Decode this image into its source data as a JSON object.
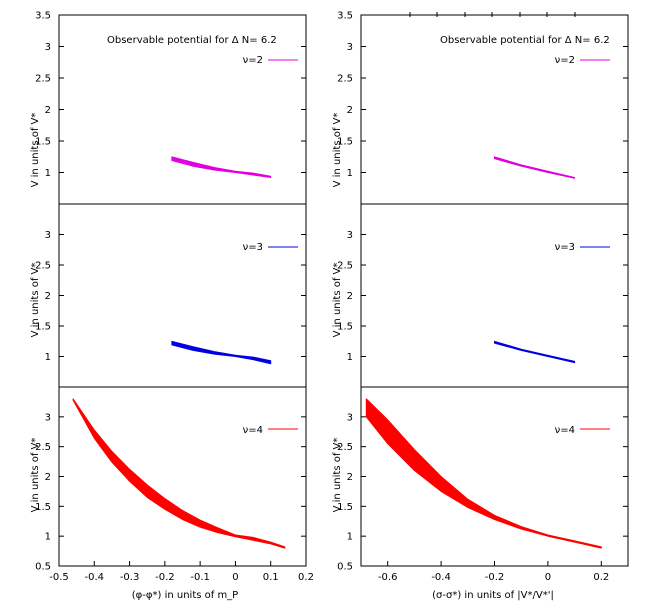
{
  "chart_data": [
    {
      "type": "scatter",
      "panel": "top-left",
      "title": "Observable potential for Δ N= 6.2",
      "legend": "ν=2",
      "legend_color": "#e000e0",
      "xlabel": "(φ-φ*) in units of m_P",
      "ylabel": "V in units of V*",
      "xlim": [
        -0.5,
        0.2
      ],
      "ylim": [
        0.5,
        3.5
      ],
      "yticks": [
        "1",
        "1.5",
        "2",
        "2.5",
        "3",
        "3.5"
      ],
      "band": {
        "x": [
          -0.18,
          -0.12,
          -0.06,
          0.0,
          0.05,
          0.1
        ],
        "lower": [
          1.19,
          1.1,
          1.04,
          1.0,
          0.96,
          0.92
        ],
        "upper": [
          1.25,
          1.16,
          1.08,
          1.02,
          0.99,
          0.94
        ]
      }
    },
    {
      "type": "scatter",
      "panel": "top-right",
      "title": "Observable potential for Δ N= 6.2",
      "legend": "ν=2",
      "legend_color": "#e000e0",
      "xlabel": "(σ-σ*) in units of |V*/V*'|",
      "ylabel": "V in units of V*",
      "xlim": [
        -0.7,
        0.3
      ],
      "ylim": [
        0.5,
        3.5
      ],
      "yticks": [
        "1",
        "1.5",
        "2",
        "2.5",
        "3",
        "3.5"
      ],
      "band": {
        "x": [
          -0.2,
          -0.1,
          0.0,
          0.1
        ],
        "lower": [
          1.22,
          1.1,
          1.0,
          0.91
        ],
        "upper": [
          1.25,
          1.12,
          1.02,
          0.92
        ]
      }
    },
    {
      "type": "scatter",
      "panel": "middle-left",
      "legend": "ν=3",
      "legend_color": "#0000e0",
      "xlabel": "(φ-φ*) in units of m_P",
      "ylabel": "V in units of V*",
      "xlim": [
        -0.5,
        0.2
      ],
      "ylim": [
        0.5,
        3.5
      ],
      "yticks": [
        "1",
        "1.5",
        "2",
        "2.5",
        "3"
      ],
      "band": {
        "x": [
          -0.18,
          -0.12,
          -0.06,
          0.0,
          0.05,
          0.1
        ],
        "lower": [
          1.19,
          1.1,
          1.04,
          1.0,
          0.95,
          0.88
        ],
        "upper": [
          1.25,
          1.16,
          1.08,
          1.02,
          0.99,
          0.93
        ]
      }
    },
    {
      "type": "scatter",
      "panel": "middle-right",
      "legend": "ν=3",
      "legend_color": "#0000e0",
      "xlabel": "(σ-σ*) in units of |V*/V*'|",
      "ylabel": "V in units of V*",
      "xlim": [
        -0.7,
        0.3
      ],
      "ylim": [
        0.5,
        3.5
      ],
      "yticks": [
        "1",
        "1.5",
        "2",
        "2.5",
        "3"
      ],
      "band": {
        "x": [
          -0.2,
          -0.1,
          0.0,
          0.1
        ],
        "lower": [
          1.22,
          1.1,
          1.0,
          0.9
        ],
        "upper": [
          1.25,
          1.12,
          1.02,
          0.92
        ]
      }
    },
    {
      "type": "scatter",
      "panel": "bottom-left",
      "legend": "ν=4",
      "legend_color": "#ff0000",
      "xlabel": "(φ-φ*) in units of m_P",
      "ylabel": "V in units of V*",
      "xlim": [
        -0.5,
        0.2
      ],
      "ylim": [
        0.5,
        3.5
      ],
      "xticks": [
        "-0.5",
        "-0.4",
        "-0.3",
        "-0.2",
        "-0.1",
        "0",
        "0.1",
        "0.2"
      ],
      "yticks": [
        "0.5",
        "1",
        "1.5",
        "2",
        "2.5",
        "3"
      ],
      "band": {
        "x": [
          -0.46,
          -0.4,
          -0.35,
          -0.3,
          -0.25,
          -0.2,
          -0.15,
          -0.1,
          -0.05,
          0.0,
          0.05,
          0.1,
          0.14
        ],
        "lower": [
          3.28,
          2.64,
          2.24,
          1.92,
          1.65,
          1.45,
          1.28,
          1.15,
          1.06,
          0.99,
          0.93,
          0.87,
          0.8
        ],
        "upper": [
          3.3,
          2.78,
          2.42,
          2.12,
          1.86,
          1.63,
          1.43,
          1.27,
          1.14,
          1.02,
          0.98,
          0.9,
          0.82
        ]
      }
    },
    {
      "type": "scatter",
      "panel": "bottom-right",
      "legend": "ν=4",
      "legend_color": "#ff0000",
      "xlabel": "(σ-σ*) in units of |V*/V*'|",
      "ylabel": "V in units of V*",
      "xlim": [
        -0.7,
        0.3
      ],
      "ylim": [
        0.5,
        3.5
      ],
      "xticks": [
        "-0.6",
        "-0.4",
        "-0.2",
        "0",
        "0.2"
      ],
      "yticks": [
        "0.5",
        "1",
        "1.5",
        "2",
        "2.5",
        "3"
      ],
      "band": {
        "x": [
          -0.68,
          -0.6,
          -0.5,
          -0.4,
          -0.3,
          -0.2,
          -0.1,
          0.0,
          0.1,
          0.2
        ],
        "lower": [
          3.0,
          2.55,
          2.1,
          1.75,
          1.48,
          1.28,
          1.12,
          1.0,
          0.9,
          0.8
        ],
        "upper": [
          3.3,
          2.95,
          2.45,
          2.0,
          1.62,
          1.35,
          1.16,
          1.02,
          0.92,
          0.82
        ]
      }
    }
  ]
}
